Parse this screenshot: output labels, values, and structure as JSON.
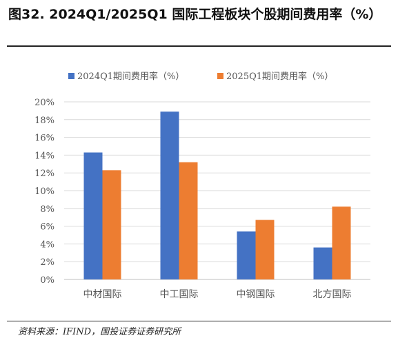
{
  "figure": {
    "title": "图32. 2024Q1/2025Q1 国际工程板块个股期间费用率（%）",
    "source": "资料来源：IFIND，国投证券证券研究所"
  },
  "colors": {
    "series_2024": "#4472C4",
    "series_2025": "#ED7D31",
    "grid": "#d9d9d9",
    "axis": "#bfbfbf"
  },
  "chart_data": {
    "type": "bar",
    "categories": [
      "中材国际",
      "中工国际",
      "中钢国际",
      "北方国际"
    ],
    "series": [
      {
        "name": "2024Q1期间费用率（%）",
        "values": [
          14.3,
          18.9,
          5.4,
          3.6
        ]
      },
      {
        "name": "2025Q1期间费用率（%）",
        "values": [
          12.3,
          13.2,
          6.7,
          8.2
        ]
      }
    ],
    "ylim": [
      0,
      20
    ],
    "yticks": [
      "0%",
      "2%",
      "4%",
      "6%",
      "8%",
      "10%",
      "12%",
      "14%",
      "16%",
      "18%",
      "20%"
    ],
    "grid": true,
    "legend_position": "top-left"
  }
}
